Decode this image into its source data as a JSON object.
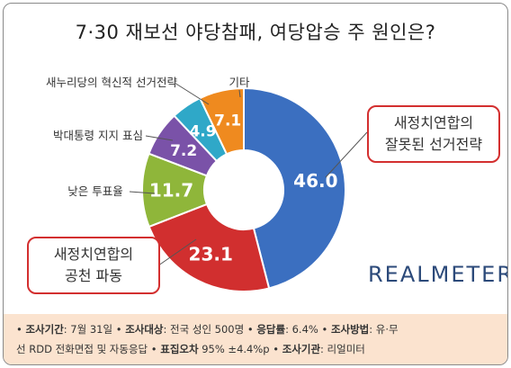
{
  "title": "7·30 재보선 야당참패, 여당압승 주 원인은?",
  "chart_data": {
    "type": "pie",
    "style": "donut",
    "slices": [
      {
        "label": "새정치연합의 잘못된 선거전략",
        "value": 46.0,
        "display": "46.0",
        "color": "#3b6fc0"
      },
      {
        "label": "새정치연합의 공천 파동",
        "value": 23.1,
        "display": "23.1",
        "color": "#d12f2f"
      },
      {
        "label": "낮은 투표율",
        "value": 11.7,
        "display": "11.7",
        "color": "#8fb63a"
      },
      {
        "label": "박대통령 지지 표심",
        "value": 7.2,
        "display": "7.2",
        "color": "#7a52a8"
      },
      {
        "label": "새누리당의 혁신적 선거전략",
        "value": 4.9,
        "display": "4.9",
        "color": "#2fa8c8"
      },
      {
        "label": "기타",
        "value": 7.1,
        "display": "7.1",
        "color": "#ef8a1f"
      }
    ],
    "callouts": {
      "right_line1": "새정치연합의",
      "right_line2": "잘못된 선거전략",
      "left_line1": "새정치연합의",
      "left_line2": "공천 파동"
    }
  },
  "brand": "REALMETER",
  "footer": {
    "period_label": "조사기간",
    "period_value": ": 7월 31일",
    "target_label": "조사대상",
    "target_value": ": 전국 성인 500명",
    "response_label": "응답률",
    "response_value": ": 6.4%",
    "method_label": "조사방법",
    "method_value_1": ": 유·무",
    "method_value_2": "선 RDD 전화면접 및 자동응답",
    "error_label": "표집오차",
    "error_value": " 95% ±4.4%p",
    "org_label": "조사기관",
    "org_value": ": 리얼미터",
    "bullet": "•"
  }
}
